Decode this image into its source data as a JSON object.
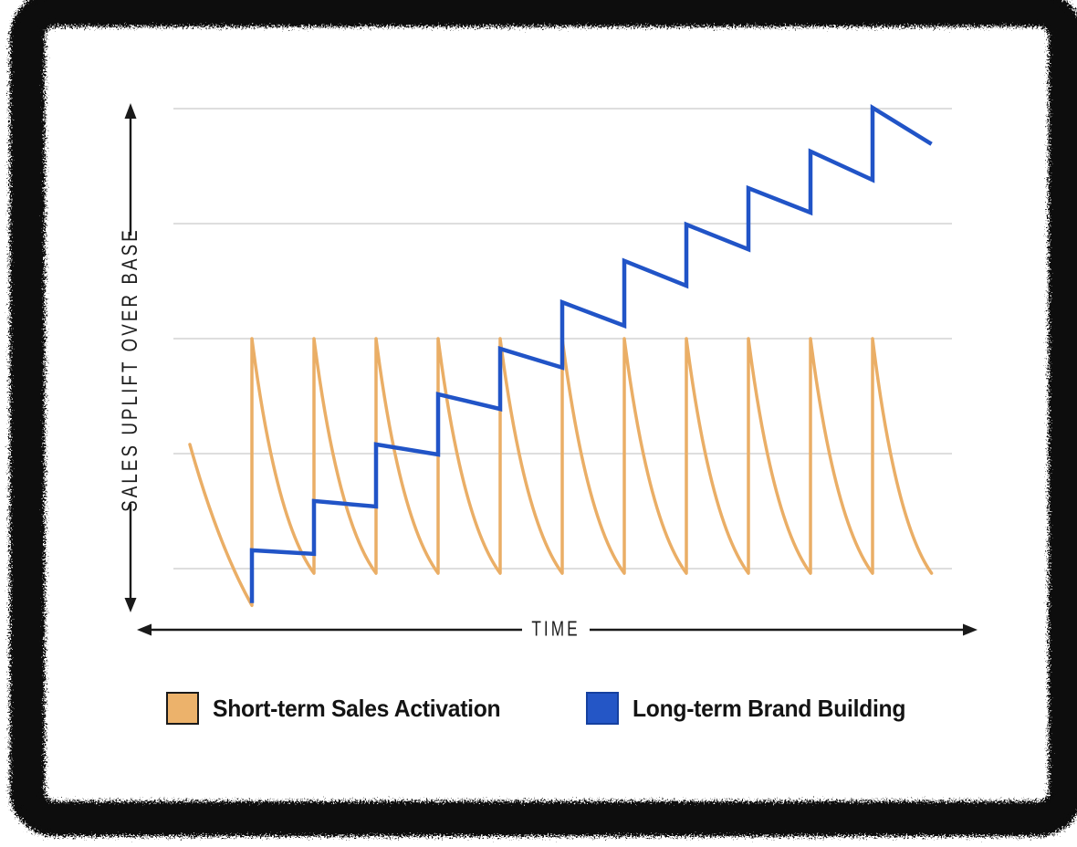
{
  "frame": {
    "style": "black-spray-paint-border",
    "color": "#0a0a0a"
  },
  "legend": {
    "items": [
      {
        "id": "activation",
        "label": "Short-term Sales Activation",
        "swatch_fill": "#ECB26B",
        "swatch_border": "#1a1a1a"
      },
      {
        "id": "brand",
        "label": "Long-term Brand Building",
        "swatch_fill": "#2456C6",
        "swatch_border": "#15409F"
      }
    ]
  },
  "chart_data": {
    "type": "line",
    "title": "",
    "xlabel": "TIME",
    "ylabel": "SALES UPLIFT OVER BASE",
    "x_axis": {
      "label": "TIME",
      "qualitative": true,
      "range_t": [
        0,
        11.95
      ],
      "arrow": "double"
    },
    "y_axis": {
      "label": "SALES UPLIFT OVER BASE",
      "qualitative": true,
      "arrow": "double",
      "gridline_values": [
        0,
        25,
        50,
        75,
        100
      ],
      "ylim": [
        -10,
        105
      ]
    },
    "grid": {
      "color": "#DEDEDE",
      "horizontal_only": true
    },
    "series": [
      {
        "name": "Short-term Sales Activation",
        "color": "#EAAE66",
        "pattern": "sawtooth-decay",
        "start": {
          "t": 0,
          "value": 27
        },
        "initial_trough_value": -8,
        "spike_times": [
          1,
          2,
          3,
          4,
          5,
          6,
          7,
          8,
          9,
          10,
          11
        ],
        "spike_peak_value": 50,
        "decay_trough_value": -1,
        "end_t": 11.95
      },
      {
        "name": "Long-term Brand Building",
        "color": "#2154C7",
        "pattern": "rising-steps",
        "points": [
          [
            1,
            -7.5
          ],
          [
            1,
            4.0
          ],
          [
            2,
            3.2
          ],
          [
            2,
            14.7
          ],
          [
            3,
            13.5
          ],
          [
            3,
            27.0
          ],
          [
            4,
            24.8
          ],
          [
            4,
            37.9
          ],
          [
            5,
            34.7
          ],
          [
            5,
            47.8
          ],
          [
            6,
            43.7
          ],
          [
            6,
            57.9
          ],
          [
            7,
            52.8
          ],
          [
            7,
            66.9
          ],
          [
            8,
            61.5
          ],
          [
            8,
            74.8
          ],
          [
            9,
            69.4
          ],
          [
            9,
            82.7
          ],
          [
            10,
            77.4
          ],
          [
            10,
            90.7
          ],
          [
            11,
            84.5
          ],
          [
            11,
            100.2
          ],
          [
            11.95,
            92.3
          ]
        ]
      }
    ]
  }
}
